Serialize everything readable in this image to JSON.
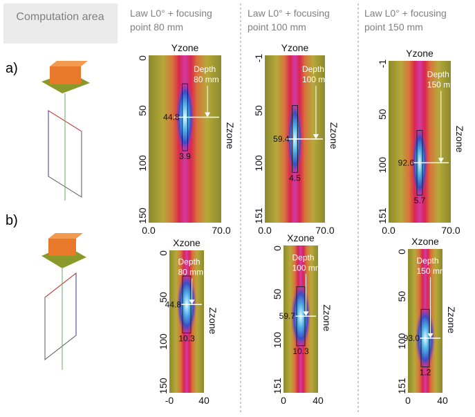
{
  "header": {
    "area": "Computation area",
    "columns": [
      "Law L0° + focusing point  80 mm",
      "Law L0° + focusing point 100 mm",
      "Law L0° + focusing point 150 mm"
    ]
  },
  "rows": [
    {
      "label": "a)",
      "panels": [
        {
          "axis_title": "Yzone",
          "side_title": "Zzone",
          "yticks": [
            "0",
            "50",
            "100",
            "150"
          ],
          "xticks": [
            "0.0",
            "70.0"
          ],
          "depth": [
            "Depth",
            "80 mm"
          ],
          "values": [
            "44.8",
            "3.9"
          ]
        },
        {
          "axis_title": "Yzone",
          "side_title": "Zzone",
          "yticks": [
            "-1",
            "50",
            "100",
            "151"
          ],
          "xticks": [
            "0.0",
            "70.0"
          ],
          "depth": [
            "Depth",
            "100 mm"
          ],
          "values": [
            "59.4",
            "4.5"
          ]
        },
        {
          "axis_title": "Yzone",
          "side_title": "Zzone",
          "yticks": [
            "-1",
            "50",
            "100",
            "151"
          ],
          "xticks": [
            "0.0",
            "70.0"
          ],
          "depth": [
            "Depth",
            "150 mm"
          ],
          "values": [
            "92.6",
            "5.7"
          ]
        }
      ]
    },
    {
      "label": "b)",
      "panels": [
        {
          "axis_title": "Xzone",
          "side_title": "Zzone",
          "yticks": [
            "0",
            "50",
            "100",
            "150"
          ],
          "xticks": [
            "-0",
            "40"
          ],
          "depth": [
            "Depth",
            "80 mm"
          ],
          "values": [
            "44.8",
            "10.3"
          ]
        },
        {
          "axis_title": "Xzone",
          "side_title": "Zzone",
          "yticks": [
            "0",
            "50",
            "100",
            "151"
          ],
          "xticks": [
            "0",
            "40"
          ],
          "depth": [
            "Depth",
            "100 mm"
          ],
          "values": [
            "59.7",
            "10.3"
          ]
        },
        {
          "axis_title": "Xzone",
          "side_title": "Zzone",
          "yticks": [
            "0",
            "50",
            "100",
            "151"
          ],
          "xticks": [
            "0",
            "40"
          ],
          "depth": [
            "Depth",
            "150 mm"
          ],
          "values": [
            "93.0",
            "1.2"
          ]
        }
      ]
    }
  ]
}
